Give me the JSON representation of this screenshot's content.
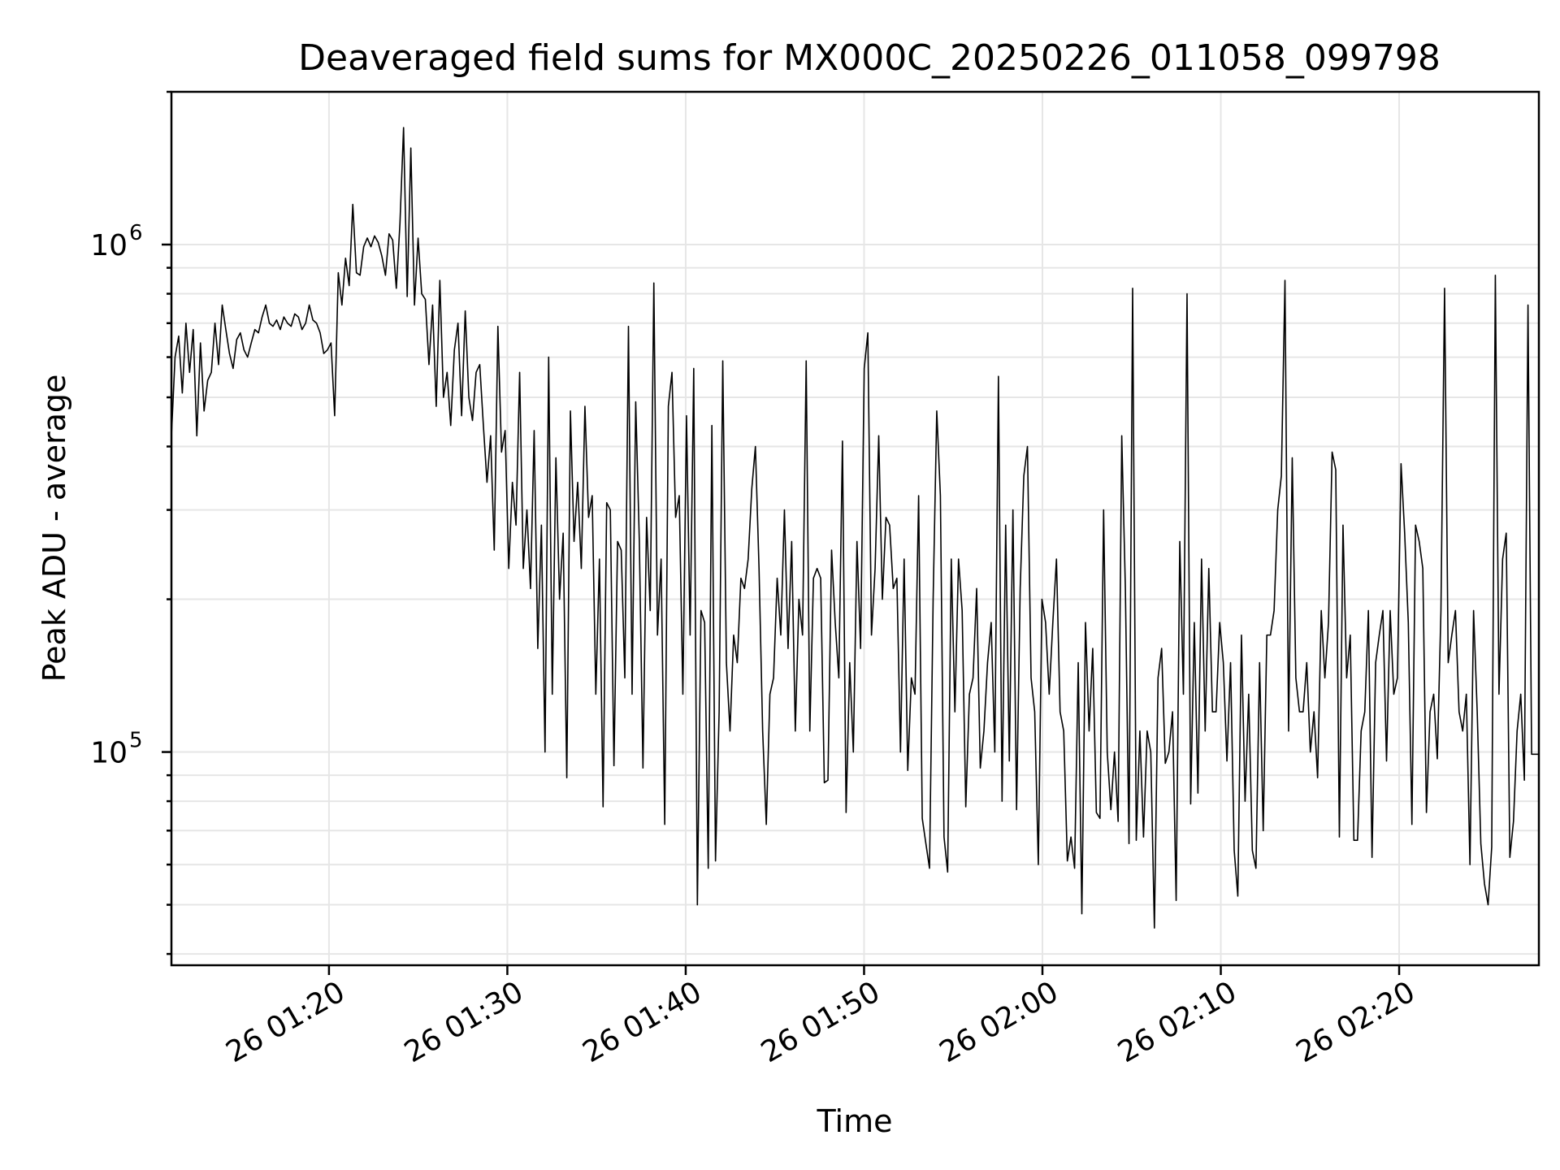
{
  "chart_data": {
    "type": "line",
    "title": "Deaveraged field sums for MX000C_20250226_011058_099798",
    "xlabel": "Time",
    "ylabel": "Peak ADU - average",
    "y_scale": "log",
    "ylim": [
      38000,
      2000000
    ],
    "xlim": [
      "2025-02-26 01:11:10",
      "2025-02-26 02:27:50"
    ],
    "grid": true,
    "x_ticks": [
      {
        "label": "26 01:20",
        "value": "2025-02-26 01:20:00"
      },
      {
        "label": "26 01:30",
        "value": "2025-02-26 01:30:00"
      },
      {
        "label": "26 01:40",
        "value": "2025-02-26 01:40:00"
      },
      {
        "label": "26 01:50",
        "value": "2025-02-26 01:50:00"
      },
      {
        "label": "26 02:00",
        "value": "2025-02-26 02:00:00"
      },
      {
        "label": "26 02:10",
        "value": "2025-02-26 02:10:00"
      },
      {
        "label": "26 02:20",
        "value": "2025-02-26 02:20:00"
      }
    ],
    "y_major_ticks": [
      {
        "base": "10",
        "exp": "5",
        "value": 100000
      },
      {
        "base": "10",
        "exp": "6",
        "value": 1000000
      }
    ],
    "y_minor_ticks": [
      40000,
      50000,
      60000,
      70000,
      80000,
      90000,
      200000,
      300000,
      400000,
      500000,
      600000,
      700000,
      800000,
      900000,
      2000000
    ],
    "series": [
      {
        "color": "#000000",
        "x_start": "2025-02-26 01:11:10",
        "x_end": "2025-02-26 02:27:50",
        "values": [
          420000,
          600000,
          660000,
          510000,
          700000,
          560000,
          680000,
          420000,
          640000,
          470000,
          540000,
          560000,
          700000,
          580000,
          760000,
          680000,
          610000,
          570000,
          650000,
          670000,
          620000,
          600000,
          640000,
          680000,
          670000,
          720000,
          760000,
          700000,
          690000,
          710000,
          680000,
          720000,
          700000,
          690000,
          730000,
          720000,
          680000,
          700000,
          760000,
          710000,
          700000,
          670000,
          610000,
          620000,
          640000,
          460000,
          880000,
          760000,
          940000,
          830000,
          1200000,
          880000,
          870000,
          990000,
          1030000,
          990000,
          1040000,
          1010000,
          950000,
          870000,
          1050000,
          1020000,
          820000,
          1100000,
          1700000,
          790000,
          1550000,
          760000,
          1030000,
          800000,
          780000,
          580000,
          760000,
          480000,
          850000,
          500000,
          560000,
          440000,
          620000,
          700000,
          460000,
          740000,
          500000,
          450000,
          560000,
          580000,
          440000,
          340000,
          420000,
          250000,
          690000,
          390000,
          430000,
          230000,
          340000,
          280000,
          560000,
          230000,
          300000,
          210000,
          430000,
          160000,
          280000,
          100000,
          600000,
          130000,
          380000,
          200000,
          270000,
          89000,
          470000,
          260000,
          340000,
          230000,
          480000,
          290000,
          320000,
          130000,
          240000,
          78000,
          310000,
          300000,
          94000,
          260000,
          250000,
          140000,
          690000,
          130000,
          490000,
          260000,
          93000,
          290000,
          190000,
          840000,
          170000,
          240000,
          72000,
          480000,
          560000,
          290000,
          320000,
          130000,
          460000,
          170000,
          570000,
          50000,
          190000,
          180000,
          59000,
          440000,
          61000,
          120000,
          590000,
          150000,
          110000,
          170000,
          150000,
          220000,
          210000,
          240000,
          330000,
          400000,
          230000,
          110000,
          72000,
          130000,
          140000,
          220000,
          170000,
          300000,
          160000,
          260000,
          110000,
          200000,
          170000,
          590000,
          110000,
          220000,
          230000,
          220000,
          87000,
          88000,
          250000,
          180000,
          140000,
          410000,
          76000,
          150000,
          100000,
          260000,
          160000,
          570000,
          670000,
          170000,
          230000,
          420000,
          200000,
          290000,
          280000,
          210000,
          220000,
          100000,
          240000,
          92000,
          140000,
          130000,
          320000,
          74000,
          66000,
          59000,
          200000,
          470000,
          320000,
          68000,
          58000,
          240000,
          120000,
          240000,
          190000,
          78000,
          130000,
          140000,
          210000,
          93000,
          110000,
          150000,
          180000,
          100000,
          550000,
          80000,
          280000,
          96000,
          300000,
          77000,
          210000,
          350000,
          400000,
          140000,
          120000,
          60000,
          200000,
          180000,
          130000,
          180000,
          240000,
          120000,
          110000,
          61000,
          68000,
          59000,
          150000,
          48000,
          180000,
          110000,
          160000,
          76000,
          74000,
          300000,
          100000,
          77000,
          100000,
          73000,
          420000,
          210000,
          66000,
          820000,
          67000,
          110000,
          68000,
          110000,
          100000,
          45000,
          140000,
          160000,
          95000,
          100000,
          120000,
          51000,
          260000,
          130000,
          800000,
          79000,
          180000,
          83000,
          240000,
          110000,
          230000,
          120000,
          120000,
          180000,
          150000,
          96000,
          150000,
          64000,
          52000,
          170000,
          80000,
          130000,
          64000,
          59000,
          150000,
          70000,
          170000,
          170000,
          190000,
          300000,
          350000,
          850000,
          110000,
          380000,
          140000,
          120000,
          120000,
          150000,
          100000,
          120000,
          89000,
          190000,
          140000,
          180000,
          390000,
          360000,
          68000,
          280000,
          140000,
          170000,
          67000,
          67000,
          110000,
          120000,
          190000,
          62000,
          150000,
          170000,
          190000,
          96000,
          190000,
          130000,
          140000,
          370000,
          270000,
          180000,
          72000,
          280000,
          260000,
          230000,
          76000,
          120000,
          130000,
          97000,
          190000,
          820000,
          150000,
          170000,
          190000,
          120000,
          110000,
          130000,
          60000,
          190000,
          120000,
          66000,
          55000,
          50000,
          65000,
          870000,
          130000,
          240000,
          270000,
          62000,
          73000,
          110000,
          130000,
          88000,
          760000,
          99000,
          99000,
          99000
        ]
      }
    ]
  }
}
